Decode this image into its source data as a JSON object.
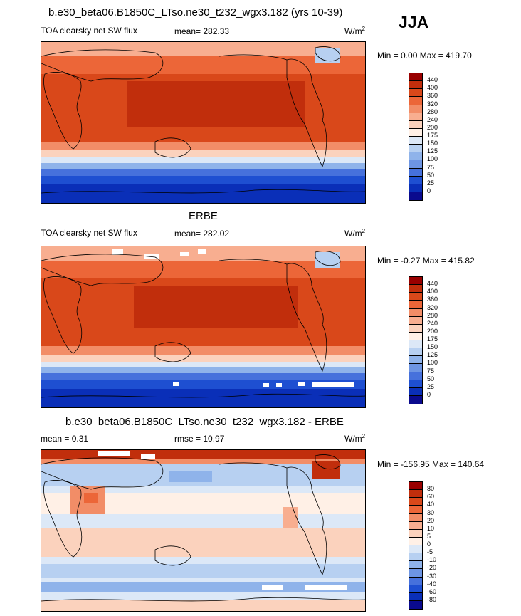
{
  "header": {
    "title": "b.e30_beta06.B1850C_LTso.ne30_t232_wgx3.182 (yrs 10-39)",
    "season": "JJA"
  },
  "panels": [
    {
      "subtitle": "",
      "left_label": "TOA clearsky net SW flux",
      "center_label": "mean= 282.33",
      "units": "W/m",
      "units_sup": "2",
      "minmax": "Min =   0.00 Max = 419.70",
      "colorbar": {
        "colors": [
          "#990000",
          "#c12e0c",
          "#d9481a",
          "#ec6638",
          "#f28d67",
          "#f8ae90",
          "#fbd2bd",
          "#fff0e6",
          "#dce8f7",
          "#b7d0f1",
          "#8fb3ea",
          "#6d95e3",
          "#4671dc",
          "#1e4fd1",
          "#0a2fb8",
          "#0a0a8e"
        ],
        "ticks": [
          "440",
          "400",
          "360",
          "320",
          "280",
          "240",
          "200",
          "175",
          "150",
          "125",
          "100",
          "75",
          "50",
          "25",
          "0"
        ]
      }
    },
    {
      "subtitle": "ERBE",
      "left_label": "TOA clearsky net SW flux",
      "center_label": "mean= 282.02",
      "units": "W/m",
      "units_sup": "2",
      "minmax": "Min =  -0.27 Max = 415.82",
      "colorbar": {
        "colors": [
          "#990000",
          "#c12e0c",
          "#d9481a",
          "#ec6638",
          "#f28d67",
          "#f8ae90",
          "#fbd2bd",
          "#fff0e6",
          "#dce8f7",
          "#b7d0f1",
          "#8fb3ea",
          "#6d95e3",
          "#4671dc",
          "#1e4fd1",
          "#0a2fb8",
          "#0a0a8e"
        ],
        "ticks": [
          "440",
          "400",
          "360",
          "320",
          "280",
          "240",
          "200",
          "175",
          "150",
          "125",
          "100",
          "75",
          "50",
          "25",
          "0"
        ]
      }
    },
    {
      "subtitle": "b.e30_beta06.B1850C_LTso.ne30_t232_wgx3.182 - ERBE",
      "left_label": "mean =   0.31",
      "center_label": "rmse =  10.97",
      "units": "W/m",
      "units_sup": "2",
      "minmax": "Min = -156.95 Max = 140.64",
      "colorbar": {
        "colors": [
          "#990000",
          "#c12e0c",
          "#d9481a",
          "#ec6638",
          "#f28d67",
          "#f8ae90",
          "#fbd2bd",
          "#fff0e6",
          "#dce8f7",
          "#b7d0f1",
          "#8fb3ea",
          "#6d95e3",
          "#4671dc",
          "#1e4fd1",
          "#0a2fb8",
          "#0a0a8e"
        ],
        "ticks": [
          "80",
          "60",
          "40",
          "30",
          "20",
          "10",
          "5",
          "0",
          "-5",
          "-10",
          "-20",
          "-30",
          "-40",
          "-60",
          "-80"
        ]
      }
    }
  ],
  "chart_data": {
    "type": "heatmap",
    "variable": "TOA clearsky net SW flux",
    "season": "JJA",
    "panels": [
      {
        "label": "b.e30_beta06.B1850C_LTso.ne30_t232_wgx3.182 (yrs 10-39)",
        "mean": 282.33,
        "min": 0.0,
        "max": 419.7
      },
      {
        "label": "ERBE",
        "mean": 282.02,
        "min": -0.27,
        "max": 415.82
      },
      {
        "label": "b.e30_beta06.B1850C_LTso.ne30_t232_wgx3.182 - ERBE",
        "mean": 0.31,
        "rmse": 10.97,
        "min": -156.95,
        "max": 140.64
      }
    ],
    "contour_levels_abs": [
      0,
      25,
      50,
      75,
      100,
      125,
      150,
      175,
      200,
      240,
      280,
      320,
      360,
      400,
      440
    ],
    "contour_levels_diff": [
      -80,
      -60,
      -40,
      -30,
      -20,
      -10,
      -5,
      0,
      5,
      10,
      20,
      30,
      40,
      60,
      80
    ]
  }
}
